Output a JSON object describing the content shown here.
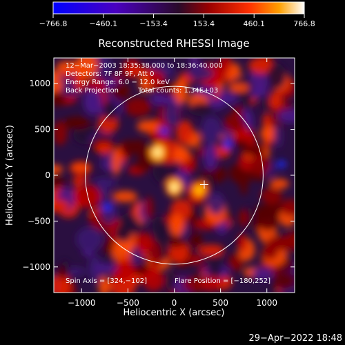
{
  "chart_data": {
    "type": "heatmap",
    "title": "Reconstructed RHESSI Image",
    "xlabel": "Heliocentric X (arcsec)",
    "ylabel": "Heliocentric Y (arcsec)",
    "xlim": [
      -1300,
      1300
    ],
    "ylim": [
      -1280,
      1280
    ],
    "x_ticks": [
      -1000,
      -500,
      0,
      500,
      1000
    ],
    "y_ticks": [
      -1000,
      -500,
      0,
      500,
      1000
    ],
    "x_tick_labels": [
      "−1000",
      "−500",
      "0",
      "500",
      "1000"
    ],
    "y_tick_labels": [
      "−1000",
      "−500",
      "0",
      "500",
      "1000"
    ],
    "colorbar": {
      "range": [
        -766.8,
        766.8
      ],
      "ticks": [
        -766.8,
        -460.1,
        -153.4,
        153.4,
        460.1,
        766.8
      ],
      "tick_labels": [
        "−766.8",
        "−460.1",
        "−153.4",
        "153.4",
        "460.1",
        "766.8"
      ]
    },
    "annotations": [
      "12−Mar−2003 18:35:38.000 to 18:36:40.000",
      "Detectors: 7F 8F 9F, Att 0",
      "Energy Range: 6.0 − 12.0 keV",
      "Back Projection",
      "Total counts: 1.34E+03"
    ],
    "footer_left": "Spin Axis = [324,−102]",
    "footer_right": "Flare Position = [−180,252]",
    "solar_limb_radius_arcsec": 960,
    "spin_axis": [
      324,
      -102
    ],
    "bright_sources": [
      {
        "x": -180,
        "y": 252,
        "value": 766.8
      },
      {
        "x": 0,
        "y": -130,
        "value": 700
      },
      {
        "x": 270,
        "y": -160,
        "value": 460
      }
    ]
  },
  "timestamp": "29−Apr−2022 18:48"
}
